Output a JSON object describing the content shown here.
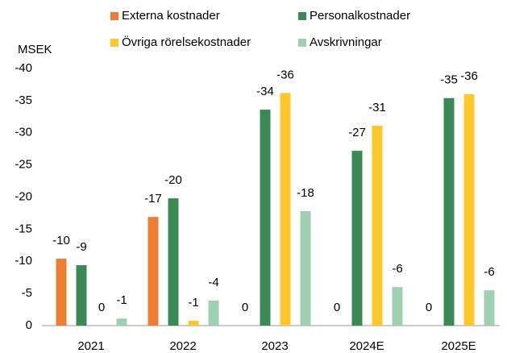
{
  "chart_data": {
    "type": "bar",
    "y_label": "MSEK",
    "categories": [
      "2021",
      "2022",
      "2023",
      "2024E",
      "2025E"
    ],
    "series": [
      {
        "name": "Externa kostnader",
        "color": "#ed7d31",
        "values": [
          -10.4,
          -16.9,
          0,
          0,
          0
        ],
        "value_labels": [
          "-10",
          "-17",
          "0",
          "0",
          "0"
        ]
      },
      {
        "name": "Personalkostnader",
        "color": "#3b8a56",
        "values": [
          -9.4,
          -19.8,
          -33.6,
          -27.2,
          -35.4
        ],
        "value_labels": [
          "-9",
          "-20",
          "-34",
          "-27",
          "-35"
        ]
      },
      {
        "name": "Övriga rörelsekostnader",
        "color": "#ffc72c",
        "values": [
          0,
          -0.75,
          -36.2,
          -31.1,
          -36.0
        ],
        "value_labels": [
          "0",
          "-1",
          "-36",
          "-31",
          "-36"
        ]
      },
      {
        "name": "Avskrivningar",
        "color": "#9fd0b2",
        "values": [
          -1.1,
          -3.9,
          -17.8,
          -6.0,
          -5.5
        ],
        "value_labels": [
          "-1",
          "-4",
          "-18",
          "-6",
          "-6"
        ]
      }
    ],
    "ylim": [
      0,
      -40
    ],
    "yticks": [
      0,
      -5,
      -10,
      -15,
      -20,
      -25,
      -30,
      -35,
      -40
    ],
    "grid": false
  }
}
